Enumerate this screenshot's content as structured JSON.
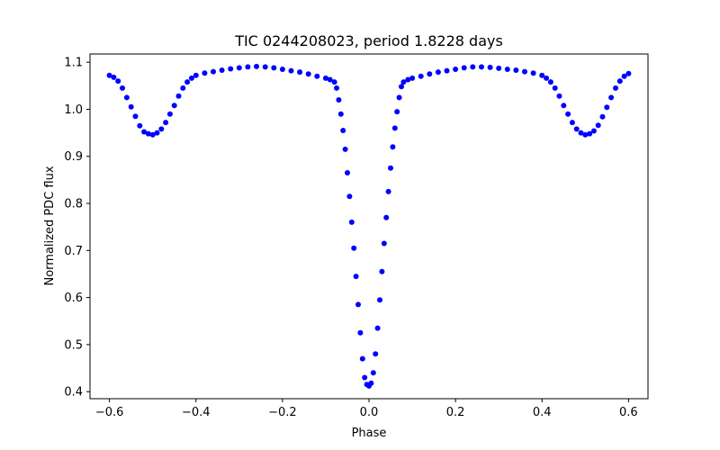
{
  "chart_data": {
    "type": "scatter",
    "title": "TIC 0244208023, period 1.8228 days",
    "xlabel": "Phase",
    "ylabel": "Normalized PDC flux",
    "xlim": [
      -0.645,
      0.645
    ],
    "ylim": [
      0.385,
      1.1175
    ],
    "xticks": [
      -0.6,
      -0.4,
      -0.2,
      0.0,
      0.2,
      0.4,
      0.6
    ],
    "xtick_labels": [
      "−0.6",
      "−0.4",
      "−0.2",
      "0.0",
      "0.2",
      "0.4",
      "0.6"
    ],
    "yticks": [
      0.4,
      0.5,
      0.6,
      0.7,
      0.8,
      0.9,
      1.0,
      1.1
    ],
    "ytick_labels": [
      "0.4",
      "0.5",
      "0.6",
      "0.7",
      "0.8",
      "0.9",
      "1.0",
      "1.1"
    ],
    "marker_color": "#0000ff",
    "grid": false,
    "series": [
      {
        "name": "PDC flux",
        "points": [
          [
            -0.6,
            1.072
          ],
          [
            -0.59,
            1.068
          ],
          [
            -0.58,
            1.06
          ],
          [
            -0.57,
            1.045
          ],
          [
            -0.56,
            1.025
          ],
          [
            -0.55,
            1.005
          ],
          [
            -0.54,
            0.985
          ],
          [
            -0.53,
            0.965
          ],
          [
            -0.52,
            0.952
          ],
          [
            -0.51,
            0.948
          ],
          [
            -0.5,
            0.946
          ],
          [
            -0.49,
            0.95
          ],
          [
            -0.48,
            0.958
          ],
          [
            -0.47,
            0.972
          ],
          [
            -0.46,
            0.99
          ],
          [
            -0.45,
            1.008
          ],
          [
            -0.44,
            1.028
          ],
          [
            -0.43,
            1.045
          ],
          [
            -0.42,
            1.058
          ],
          [
            -0.41,
            1.066
          ],
          [
            -0.4,
            1.072
          ],
          [
            -0.38,
            1.077
          ],
          [
            -0.36,
            1.08
          ],
          [
            -0.34,
            1.083
          ],
          [
            -0.32,
            1.086
          ],
          [
            -0.3,
            1.088
          ],
          [
            -0.28,
            1.09
          ],
          [
            -0.26,
            1.091
          ],
          [
            -0.24,
            1.09
          ],
          [
            -0.22,
            1.088
          ],
          [
            -0.2,
            1.085
          ],
          [
            -0.18,
            1.082
          ],
          [
            -0.16,
            1.079
          ],
          [
            -0.14,
            1.075
          ],
          [
            -0.12,
            1.07
          ],
          [
            -0.1,
            1.066
          ],
          [
            -0.09,
            1.063
          ],
          [
            -0.08,
            1.058
          ],
          [
            -0.075,
            1.045
          ],
          [
            -0.07,
            1.02
          ],
          [
            -0.065,
            0.99
          ],
          [
            -0.06,
            0.955
          ],
          [
            -0.055,
            0.915
          ],
          [
            -0.05,
            0.865
          ],
          [
            -0.045,
            0.815
          ],
          [
            -0.04,
            0.76
          ],
          [
            -0.035,
            0.705
          ],
          [
            -0.03,
            0.645
          ],
          [
            -0.025,
            0.585
          ],
          [
            -0.02,
            0.525
          ],
          [
            -0.015,
            0.47
          ],
          [
            -0.01,
            0.43
          ],
          [
            -0.005,
            0.415
          ],
          [
            0.0,
            0.412
          ],
          [
            0.005,
            0.418
          ],
          [
            0.01,
            0.44
          ],
          [
            0.015,
            0.48
          ],
          [
            0.02,
            0.535
          ],
          [
            0.025,
            0.595
          ],
          [
            0.03,
            0.655
          ],
          [
            0.035,
            0.715
          ],
          [
            0.04,
            0.77
          ],
          [
            0.045,
            0.825
          ],
          [
            0.05,
            0.875
          ],
          [
            0.055,
            0.92
          ],
          [
            0.06,
            0.96
          ],
          [
            0.065,
            0.995
          ],
          [
            0.07,
            1.025
          ],
          [
            0.075,
            1.048
          ],
          [
            0.08,
            1.058
          ],
          [
            0.09,
            1.063
          ],
          [
            0.1,
            1.066
          ],
          [
            0.12,
            1.07
          ],
          [
            0.14,
            1.075
          ],
          [
            0.16,
            1.079
          ],
          [
            0.18,
            1.082
          ],
          [
            0.2,
            1.085
          ],
          [
            0.22,
            1.088
          ],
          [
            0.24,
            1.09
          ],
          [
            0.26,
            1.09
          ],
          [
            0.28,
            1.089
          ],
          [
            0.3,
            1.087
          ],
          [
            0.32,
            1.085
          ],
          [
            0.34,
            1.083
          ],
          [
            0.36,
            1.08
          ],
          [
            0.38,
            1.077
          ],
          [
            0.4,
            1.072
          ],
          [
            0.41,
            1.066
          ],
          [
            0.42,
            1.058
          ],
          [
            0.43,
            1.045
          ],
          [
            0.44,
            1.028
          ],
          [
            0.45,
            1.008
          ],
          [
            0.46,
            0.99
          ],
          [
            0.47,
            0.972
          ],
          [
            0.48,
            0.958
          ],
          [
            0.49,
            0.95
          ],
          [
            0.5,
            0.946
          ],
          [
            0.51,
            0.948
          ],
          [
            0.52,
            0.954
          ],
          [
            0.53,
            0.966
          ],
          [
            0.54,
            0.984
          ],
          [
            0.55,
            1.004
          ],
          [
            0.56,
            1.025
          ],
          [
            0.57,
            1.045
          ],
          [
            0.58,
            1.06
          ],
          [
            0.59,
            1.07
          ],
          [
            0.6,
            1.076
          ]
        ]
      }
    ]
  }
}
